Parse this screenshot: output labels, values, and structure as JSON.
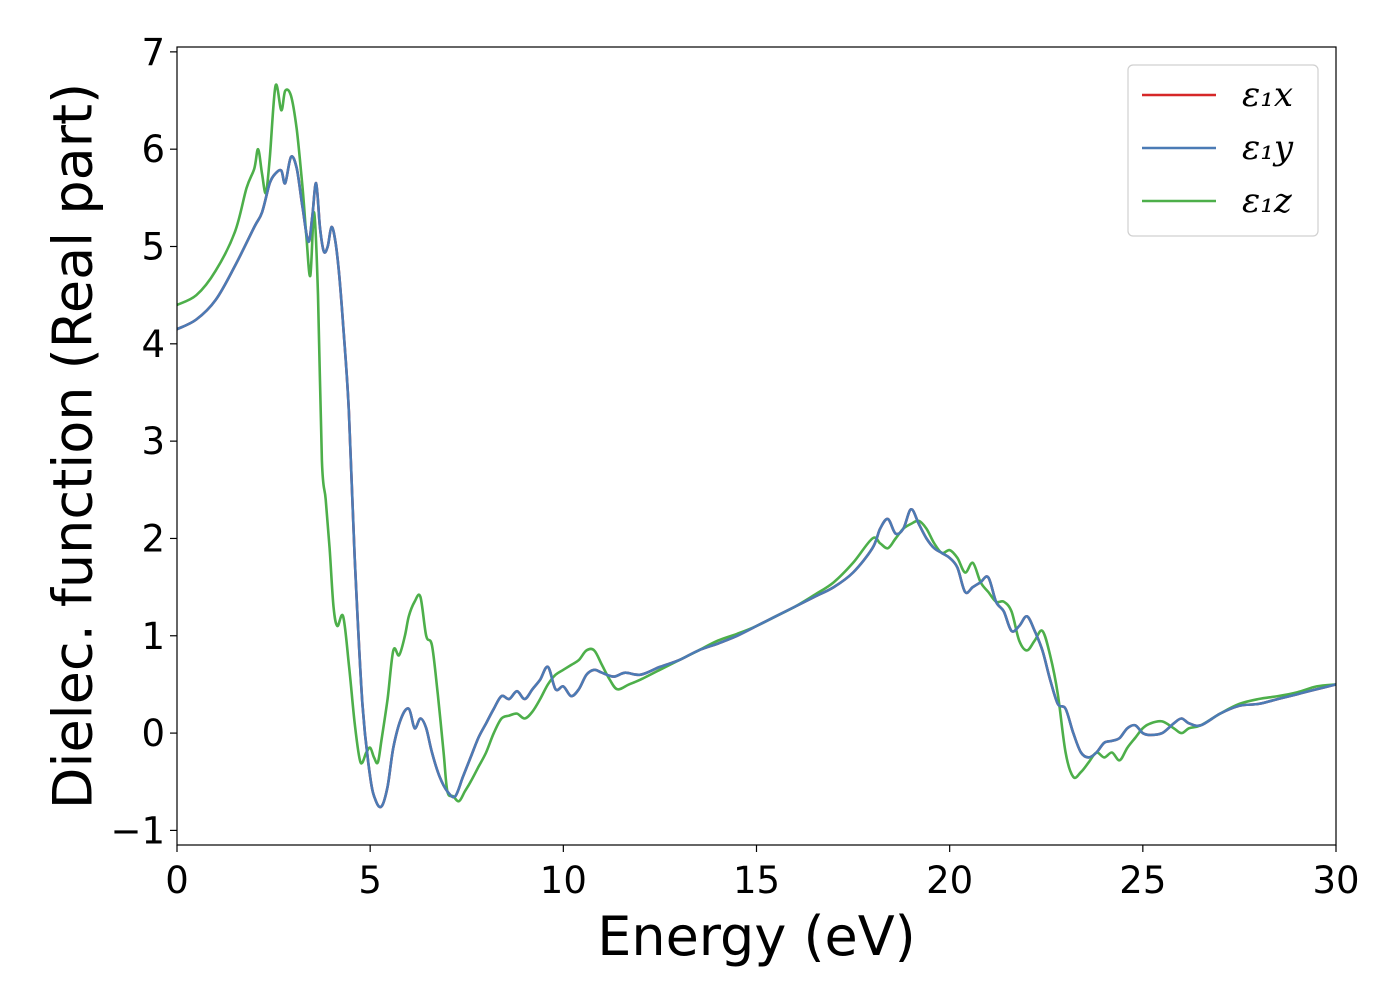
{
  "chart_data": {
    "type": "line",
    "title": "",
    "xlabel": "Energy (eV)",
    "ylabel": "Dielec. function (Real part)",
    "xlim": [
      0,
      30
    ],
    "ylim": [
      -1.15,
      7.05
    ],
    "xticks": [
      0,
      5,
      10,
      15,
      20,
      25,
      30
    ],
    "xtick_labels": [
      "0",
      "5",
      "10",
      "15",
      "20",
      "25",
      "30"
    ],
    "yticks": [
      -1,
      0,
      1,
      2,
      3,
      4,
      5,
      6,
      7
    ],
    "ytick_labels": [
      "−1",
      "0",
      "1",
      "2",
      "3",
      "4",
      "5",
      "6",
      "7"
    ],
    "grid": false,
    "legend_position": "top-right",
    "series": [
      {
        "name": "ε₁x",
        "color": "#d62728",
        "x": [
          0,
          0.5,
          1.0,
          1.5,
          2.0,
          2.2,
          2.4,
          2.55,
          2.7,
          2.8,
          2.95,
          3.1,
          3.25,
          3.4,
          3.5,
          3.6,
          3.7,
          3.8,
          3.9,
          4.0,
          4.1,
          4.2,
          4.3,
          4.45,
          4.6,
          4.8,
          5.0,
          5.15,
          5.3,
          5.45,
          5.6,
          5.8,
          6.0,
          6.15,
          6.3,
          6.45,
          6.6,
          6.8,
          7.0,
          7.2,
          7.4,
          7.6,
          7.8,
          8.0,
          8.2,
          8.4,
          8.6,
          8.8,
          9.0,
          9.2,
          9.4,
          9.6,
          9.8,
          10.0,
          10.2,
          10.4,
          10.6,
          10.8,
          11.0,
          11.3,
          11.6,
          12.0,
          12.5,
          13.0,
          13.5,
          14.0,
          14.5,
          15.0,
          15.5,
          16.0,
          16.5,
          17.0,
          17.5,
          18.0,
          18.2,
          18.4,
          18.6,
          18.8,
          19.0,
          19.2,
          19.4,
          19.6,
          19.8,
          20.0,
          20.2,
          20.4,
          20.6,
          20.8,
          21.0,
          21.2,
          21.4,
          21.6,
          21.8,
          22.0,
          22.2,
          22.4,
          22.6,
          22.8,
          23.0,
          23.2,
          23.4,
          23.6,
          23.8,
          24.0,
          24.2,
          24.4,
          24.6,
          24.8,
          25.0,
          25.2,
          25.5,
          25.8,
          26.0,
          26.2,
          26.5,
          27.0,
          27.5,
          28.0,
          28.5,
          29.0,
          29.5,
          30.0
        ],
        "y": [
          4.15,
          4.25,
          4.45,
          4.8,
          5.2,
          5.35,
          5.65,
          5.75,
          5.78,
          5.65,
          5.92,
          5.8,
          5.4,
          5.05,
          5.3,
          5.65,
          5.2,
          4.95,
          5.0,
          5.2,
          5.05,
          4.7,
          4.2,
          3.3,
          1.8,
          0.3,
          -0.45,
          -0.7,
          -0.75,
          -0.55,
          -0.15,
          0.15,
          0.25,
          0.05,
          0.15,
          0.05,
          -0.2,
          -0.45,
          -0.6,
          -0.65,
          -0.45,
          -0.25,
          -0.05,
          0.1,
          0.25,
          0.38,
          0.35,
          0.43,
          0.35,
          0.45,
          0.55,
          0.68,
          0.45,
          0.48,
          0.38,
          0.45,
          0.6,
          0.65,
          0.62,
          0.58,
          0.62,
          0.6,
          0.68,
          0.75,
          0.85,
          0.92,
          1.0,
          1.1,
          1.2,
          1.3,
          1.4,
          1.5,
          1.65,
          1.9,
          2.1,
          2.2,
          2.05,
          2.1,
          2.3,
          2.15,
          2.0,
          1.9,
          1.85,
          1.8,
          1.7,
          1.45,
          1.5,
          1.55,
          1.6,
          1.35,
          1.25,
          1.05,
          1.1,
          1.2,
          1.05,
          0.85,
          0.55,
          0.3,
          0.25,
          0.0,
          -0.2,
          -0.25,
          -0.2,
          -0.1,
          -0.08,
          -0.05,
          0.05,
          0.08,
          0.0,
          -0.02,
          0.0,
          0.1,
          0.15,
          0.1,
          0.08,
          0.2,
          0.28,
          0.3,
          0.35,
          0.4,
          0.45,
          0.5
        ]
      },
      {
        "name": "ε₁y",
        "color": "#4b7bb5",
        "x": [
          0,
          0.5,
          1.0,
          1.5,
          2.0,
          2.2,
          2.4,
          2.55,
          2.7,
          2.8,
          2.95,
          3.1,
          3.25,
          3.4,
          3.5,
          3.6,
          3.7,
          3.8,
          3.9,
          4.0,
          4.1,
          4.2,
          4.3,
          4.45,
          4.6,
          4.8,
          5.0,
          5.15,
          5.3,
          5.45,
          5.6,
          5.8,
          6.0,
          6.15,
          6.3,
          6.45,
          6.6,
          6.8,
          7.0,
          7.2,
          7.4,
          7.6,
          7.8,
          8.0,
          8.2,
          8.4,
          8.6,
          8.8,
          9.0,
          9.2,
          9.4,
          9.6,
          9.8,
          10.0,
          10.2,
          10.4,
          10.6,
          10.8,
          11.0,
          11.3,
          11.6,
          12.0,
          12.5,
          13.0,
          13.5,
          14.0,
          14.5,
          15.0,
          15.5,
          16.0,
          16.5,
          17.0,
          17.5,
          18.0,
          18.2,
          18.4,
          18.6,
          18.8,
          19.0,
          19.2,
          19.4,
          19.6,
          19.8,
          20.0,
          20.2,
          20.4,
          20.6,
          20.8,
          21.0,
          21.2,
          21.4,
          21.6,
          21.8,
          22.0,
          22.2,
          22.4,
          22.6,
          22.8,
          23.0,
          23.2,
          23.4,
          23.6,
          23.8,
          24.0,
          24.2,
          24.4,
          24.6,
          24.8,
          25.0,
          25.2,
          25.5,
          25.8,
          26.0,
          26.2,
          26.5,
          27.0,
          27.5,
          28.0,
          28.5,
          29.0,
          29.5,
          30.0
        ],
        "y": [
          4.15,
          4.25,
          4.45,
          4.8,
          5.2,
          5.35,
          5.65,
          5.75,
          5.78,
          5.65,
          5.92,
          5.8,
          5.4,
          5.05,
          5.3,
          5.65,
          5.2,
          4.95,
          5.0,
          5.2,
          5.05,
          4.7,
          4.2,
          3.3,
          1.8,
          0.3,
          -0.45,
          -0.7,
          -0.75,
          -0.55,
          -0.15,
          0.15,
          0.25,
          0.05,
          0.15,
          0.05,
          -0.2,
          -0.45,
          -0.6,
          -0.65,
          -0.45,
          -0.25,
          -0.05,
          0.1,
          0.25,
          0.38,
          0.35,
          0.43,
          0.35,
          0.45,
          0.55,
          0.68,
          0.45,
          0.48,
          0.38,
          0.45,
          0.6,
          0.65,
          0.62,
          0.58,
          0.62,
          0.6,
          0.68,
          0.75,
          0.85,
          0.92,
          1.0,
          1.1,
          1.2,
          1.3,
          1.4,
          1.5,
          1.65,
          1.9,
          2.1,
          2.2,
          2.05,
          2.1,
          2.3,
          2.15,
          2.0,
          1.9,
          1.85,
          1.8,
          1.7,
          1.45,
          1.5,
          1.55,
          1.6,
          1.35,
          1.25,
          1.05,
          1.1,
          1.2,
          1.05,
          0.85,
          0.55,
          0.3,
          0.25,
          0.0,
          -0.2,
          -0.25,
          -0.2,
          -0.1,
          -0.08,
          -0.05,
          0.05,
          0.08,
          0.0,
          -0.02,
          0.0,
          0.1,
          0.15,
          0.1,
          0.08,
          0.2,
          0.28,
          0.3,
          0.35,
          0.4,
          0.45,
          0.5
        ]
      },
      {
        "name": "ε₁z",
        "color": "#4daf4a",
        "x": [
          0,
          0.5,
          1.0,
          1.5,
          1.8,
          2.0,
          2.1,
          2.2,
          2.3,
          2.4,
          2.55,
          2.7,
          2.8,
          2.95,
          3.1,
          3.25,
          3.35,
          3.45,
          3.55,
          3.65,
          3.75,
          3.85,
          3.95,
          4.05,
          4.15,
          4.3,
          4.45,
          4.6,
          4.75,
          4.9,
          5.0,
          5.1,
          5.2,
          5.3,
          5.45,
          5.6,
          5.75,
          5.9,
          6.0,
          6.15,
          6.3,
          6.45,
          6.6,
          6.75,
          6.9,
          7.0,
          7.15,
          7.3,
          7.45,
          7.6,
          7.8,
          8.0,
          8.2,
          8.4,
          8.6,
          8.8,
          9.0,
          9.2,
          9.4,
          9.6,
          9.8,
          10.0,
          10.2,
          10.4,
          10.6,
          10.8,
          11.0,
          11.2,
          11.4,
          11.7,
          12.0,
          12.5,
          13.0,
          13.5,
          14.0,
          14.5,
          15.0,
          15.5,
          16.0,
          16.5,
          17.0,
          17.5,
          18.0,
          18.2,
          18.4,
          18.6,
          18.8,
          19.0,
          19.2,
          19.4,
          19.6,
          19.8,
          20.0,
          20.2,
          20.4,
          20.6,
          20.8,
          21.0,
          21.2,
          21.4,
          21.6,
          21.8,
          22.0,
          22.2,
          22.4,
          22.6,
          22.8,
          23.0,
          23.2,
          23.4,
          23.6,
          23.8,
          24.0,
          24.2,
          24.4,
          24.6,
          24.8,
          25.0,
          25.2,
          25.5,
          25.8,
          26.0,
          26.2,
          26.5,
          27.0,
          27.5,
          28.0,
          28.5,
          29.0,
          29.5,
          30.0
        ],
        "y": [
          4.4,
          4.5,
          4.75,
          5.15,
          5.6,
          5.8,
          6.0,
          5.75,
          5.55,
          5.9,
          6.65,
          6.4,
          6.6,
          6.55,
          6.2,
          5.6,
          5.1,
          4.7,
          5.35,
          4.5,
          2.8,
          2.4,
          1.9,
          1.3,
          1.1,
          1.2,
          0.7,
          0.1,
          -0.3,
          -0.2,
          -0.15,
          -0.25,
          -0.3,
          -0.05,
          0.35,
          0.85,
          0.8,
          1.0,
          1.2,
          1.35,
          1.4,
          1.0,
          0.9,
          0.4,
          -0.2,
          -0.6,
          -0.65,
          -0.7,
          -0.6,
          -0.5,
          -0.35,
          -0.2,
          0.0,
          0.15,
          0.18,
          0.2,
          0.15,
          0.22,
          0.35,
          0.5,
          0.6,
          0.65,
          0.7,
          0.75,
          0.85,
          0.85,
          0.7,
          0.55,
          0.45,
          0.5,
          0.55,
          0.65,
          0.75,
          0.85,
          0.95,
          1.02,
          1.1,
          1.2,
          1.3,
          1.42,
          1.55,
          1.75,
          2.0,
          1.95,
          1.9,
          2.0,
          2.1,
          2.15,
          2.18,
          2.1,
          1.95,
          1.85,
          1.88,
          1.8,
          1.65,
          1.75,
          1.55,
          1.45,
          1.35,
          1.35,
          1.25,
          0.95,
          0.85,
          0.95,
          1.05,
          0.8,
          0.4,
          -0.2,
          -0.45,
          -0.4,
          -0.3,
          -0.2,
          -0.25,
          -0.2,
          -0.28,
          -0.15,
          -0.05,
          0.05,
          0.1,
          0.12,
          0.05,
          0.0,
          0.05,
          0.08,
          0.2,
          0.3,
          0.35,
          0.38,
          0.42,
          0.48,
          0.5
        ]
      }
    ]
  }
}
